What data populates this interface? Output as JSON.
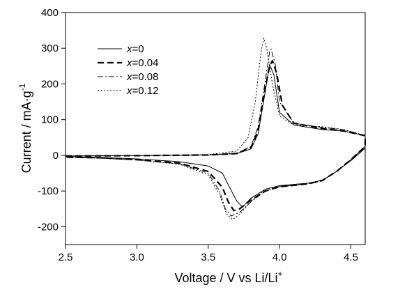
{
  "chart_data": {
    "type": "line",
    "xlabel_main": "Voltage / V vs Li/Li",
    "xlabel_sup": "+",
    "ylabel_main": "Current / mA·g",
    "ylabel_sup": "-1",
    "xlim": [
      2.5,
      4.6
    ],
    "ylim": [
      -250,
      400
    ],
    "xticks": [
      "2.5",
      "3.0",
      "3.5",
      "4.0",
      "4.5"
    ],
    "yticks": [
      "400",
      "300",
      "200",
      "100",
      "0",
      "-100",
      "-200"
    ],
    "grid": false,
    "legend_position": "top-left",
    "series": [
      {
        "name": "0",
        "name_prefix": "x",
        "name_suffix": "=0",
        "style": "solid",
        "width": 1.0,
        "points": [
          [
            2.5,
            -2
          ],
          [
            3.0,
            -1
          ],
          [
            3.5,
            1
          ],
          [
            3.7,
            5
          ],
          [
            3.8,
            18
          ],
          [
            3.85,
            60
          ],
          [
            3.9,
            180
          ],
          [
            3.93,
            255
          ],
          [
            3.96,
            225
          ],
          [
            4.0,
            120
          ],
          [
            4.1,
            85
          ],
          [
            4.3,
            72
          ],
          [
            4.45,
            68
          ],
          [
            4.6,
            55
          ],
          [
            4.6,
            20
          ],
          [
            4.5,
            -15
          ],
          [
            4.4,
            -45
          ],
          [
            4.3,
            -70
          ],
          [
            4.2,
            -78
          ],
          [
            4.0,
            -85
          ],
          [
            3.9,
            -95
          ],
          [
            3.8,
            -120
          ],
          [
            3.74,
            -145
          ],
          [
            3.7,
            -128
          ],
          [
            3.65,
            -90
          ],
          [
            3.6,
            -50
          ],
          [
            3.5,
            -30
          ],
          [
            3.3,
            -18
          ],
          [
            3.0,
            -10
          ],
          [
            2.75,
            -6
          ],
          [
            2.5,
            -4
          ]
        ]
      },
      {
        "name": "0.04",
        "name_prefix": "x",
        "name_suffix": "=0.04",
        "style": "dashed",
        "width": 2.2,
        "points": [
          [
            2.5,
            -2
          ],
          [
            3.0,
            -1
          ],
          [
            3.5,
            1
          ],
          [
            3.7,
            5
          ],
          [
            3.8,
            22
          ],
          [
            3.85,
            70
          ],
          [
            3.9,
            190
          ],
          [
            3.93,
            250
          ],
          [
            3.95,
            265
          ],
          [
            3.98,
            230
          ],
          [
            4.02,
            140
          ],
          [
            4.1,
            90
          ],
          [
            4.3,
            75
          ],
          [
            4.45,
            68
          ],
          [
            4.6,
            55
          ],
          [
            4.6,
            25
          ],
          [
            4.5,
            -12
          ],
          [
            4.4,
            -45
          ],
          [
            4.3,
            -70
          ],
          [
            4.2,
            -80
          ],
          [
            4.0,
            -88
          ],
          [
            3.9,
            -100
          ],
          [
            3.8,
            -125
          ],
          [
            3.72,
            -150
          ],
          [
            3.68,
            -155
          ],
          [
            3.64,
            -130
          ],
          [
            3.6,
            -90
          ],
          [
            3.5,
            -45
          ],
          [
            3.3,
            -22
          ],
          [
            3.0,
            -12
          ],
          [
            2.75,
            -7
          ],
          [
            2.5,
            -5
          ]
        ]
      },
      {
        "name": "0.08",
        "name_prefix": "x",
        "name_suffix": "=0.08",
        "style": "dashdot",
        "width": 1.0,
        "points": [
          [
            2.5,
            -2
          ],
          [
            3.0,
            -1
          ],
          [
            3.5,
            1
          ],
          [
            3.7,
            6
          ],
          [
            3.8,
            25
          ],
          [
            3.85,
            80
          ],
          [
            3.9,
            210
          ],
          [
            3.93,
            290
          ],
          [
            3.94,
            298
          ],
          [
            3.97,
            255
          ],
          [
            4.0,
            150
          ],
          [
            4.1,
            90
          ],
          [
            4.3,
            78
          ],
          [
            4.45,
            72
          ],
          [
            4.6,
            55
          ],
          [
            4.6,
            25
          ],
          [
            4.5,
            -12
          ],
          [
            4.4,
            -45
          ],
          [
            4.3,
            -72
          ],
          [
            4.2,
            -80
          ],
          [
            4.0,
            -88
          ],
          [
            3.9,
            -100
          ],
          [
            3.8,
            -130
          ],
          [
            3.72,
            -160
          ],
          [
            3.66,
            -170
          ],
          [
            3.62,
            -150
          ],
          [
            3.58,
            -100
          ],
          [
            3.5,
            -50
          ],
          [
            3.3,
            -24
          ],
          [
            3.0,
            -13
          ],
          [
            2.75,
            -8
          ],
          [
            2.5,
            -5
          ]
        ]
      },
      {
        "name": "0.12",
        "name_prefix": "x",
        "name_suffix": "=0.12",
        "style": "dotted",
        "width": 1.0,
        "points": [
          [
            2.5,
            -2
          ],
          [
            3.0,
            -1
          ],
          [
            3.5,
            2
          ],
          [
            3.7,
            12
          ],
          [
            3.78,
            50
          ],
          [
            3.83,
            150
          ],
          [
            3.87,
            290
          ],
          [
            3.89,
            328
          ],
          [
            3.91,
            300
          ],
          [
            3.95,
            200
          ],
          [
            4.0,
            110
          ],
          [
            4.1,
            85
          ],
          [
            4.3,
            80
          ],
          [
            4.45,
            72
          ],
          [
            4.6,
            55
          ],
          [
            4.6,
            25
          ],
          [
            4.5,
            -12
          ],
          [
            4.4,
            -45
          ],
          [
            4.3,
            -70
          ],
          [
            4.2,
            -78
          ],
          [
            4.0,
            -85
          ],
          [
            3.9,
            -95
          ],
          [
            3.8,
            -130
          ],
          [
            3.72,
            -165
          ],
          [
            3.67,
            -180
          ],
          [
            3.63,
            -165
          ],
          [
            3.58,
            -110
          ],
          [
            3.5,
            -55
          ],
          [
            3.3,
            -25
          ],
          [
            3.0,
            -13
          ],
          [
            2.75,
            -8
          ],
          [
            2.5,
            -5
          ]
        ]
      }
    ]
  }
}
